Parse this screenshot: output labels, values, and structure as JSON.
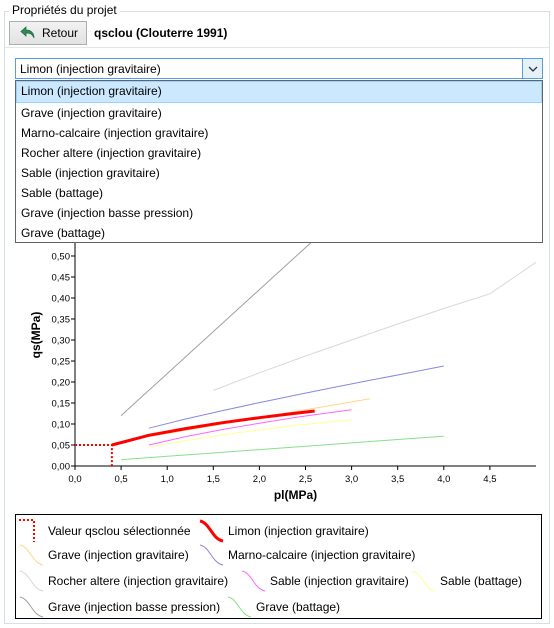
{
  "panel": {
    "title": "Propriétés du projet"
  },
  "toolbar": {
    "back_label": "Retour",
    "project_name": "qsclou (Clouterre 1991)"
  },
  "combo": {
    "selected": "Limon (injection gravitaire)",
    "options": [
      "Limon (injection gravitaire)",
      "Grave (injection gravitaire)",
      "Marno-calcaire (injection gravitaire)",
      "Rocher altere (injection gravitaire)",
      "Sable (injection gravitaire)",
      "Sable (battage)",
      "Grave (injection basse pression)",
      "Grave (battage)"
    ]
  },
  "chart_data": {
    "type": "line",
    "xlabel": "pl(MPa)",
    "ylabel": "qs(MPa)",
    "xlim": [
      0,
      5
    ],
    "ylim": [
      0,
      0.55
    ],
    "x_ticks": [
      "0,0",
      "0,5",
      "1,0",
      "1,5",
      "2,0",
      "2,5",
      "3,0",
      "3,5",
      "4,0",
      "4,5"
    ],
    "y_ticks": [
      "0,00",
      "0,05",
      "0,10",
      "0,15",
      "0,20",
      "0,25",
      "0,30",
      "0,35",
      "0,40",
      "0,45",
      "0,50"
    ],
    "grid": false,
    "selected_value": {
      "name": "Valeur qsclou sélectionnée",
      "color": "#ff0000",
      "pl": 0.4,
      "qs": 0.05
    },
    "series": [
      {
        "name": "Limon (injection gravitaire)",
        "color": "#ff0000",
        "highlight": true,
        "x": [
          0.4,
          0.8,
          1.2,
          1.6,
          2.0,
          2.3,
          2.6
        ],
        "y": [
          0.05,
          0.073,
          0.089,
          0.103,
          0.115,
          0.123,
          0.131
        ]
      },
      {
        "name": "Grave (injection gravitaire)",
        "color": "#ffd58a",
        "x": [
          0.8,
          1.2,
          1.6,
          2.0,
          2.4,
          2.8,
          3.2
        ],
        "y": [
          0.07,
          0.085,
          0.1,
          0.115,
          0.13,
          0.145,
          0.16
        ]
      },
      {
        "name": "Marno-calcaire (injection gravitaire)",
        "color": "#8888e0",
        "x": [
          0.8,
          1.2,
          1.6,
          2.0,
          2.4,
          2.8,
          3.2,
          3.6,
          4.0
        ],
        "y": [
          0.09,
          0.112,
          0.132,
          0.151,
          0.169,
          0.187,
          0.204,
          0.221,
          0.238
        ]
      },
      {
        "name": "Rocher altere (injection gravitaire)",
        "color": "#d8d8d8",
        "x": [
          1.5,
          2.0,
          2.5,
          3.0,
          3.5,
          4.0,
          4.5,
          5.0
        ],
        "y": [
          0.18,
          0.222,
          0.262,
          0.3,
          0.338,
          0.375,
          0.41,
          0.485
        ]
      },
      {
        "name": "Sable (injection gravitaire)",
        "color": "#ff66ff",
        "x": [
          0.8,
          1.2,
          1.6,
          2.0,
          2.4,
          2.8,
          3.0
        ],
        "y": [
          0.05,
          0.07,
          0.087,
          0.102,
          0.116,
          0.128,
          0.134
        ]
      },
      {
        "name": "Sable (battage)",
        "color": "#ffff99",
        "x": [
          0.8,
          1.2,
          1.6,
          2.0,
          2.4,
          2.8,
          3.0
        ],
        "y": [
          0.045,
          0.06,
          0.074,
          0.086,
          0.097,
          0.106,
          0.11
        ]
      },
      {
        "name": "Grave (injection basse pression)",
        "color": "#a0a0a0",
        "x": [
          0.5,
          1.0,
          1.5,
          2.0,
          2.5,
          2.8
        ],
        "y": [
          0.12,
          0.22,
          0.32,
          0.42,
          0.52,
          0.58
        ]
      },
      {
        "name": "Grave (battage)",
        "color": "#88e088",
        "x": [
          0.5,
          1.0,
          1.5,
          2.0,
          2.5,
          3.0,
          3.5,
          4.0
        ],
        "y": [
          0.015,
          0.023,
          0.031,
          0.039,
          0.047,
          0.055,
          0.063,
          0.071
        ]
      }
    ]
  },
  "legend": {
    "items": [
      "Valeur qsclou sélectionnée",
      "Limon (injection gravitaire)",
      "Grave (injection gravitaire)",
      "Marno-calcaire (injection gravitaire)",
      "Rocher altere (injection gravitaire)",
      "Sable (injection gravitaire)",
      "Sable (battage)",
      "Grave (injection basse pression)",
      "Grave (battage)"
    ]
  }
}
